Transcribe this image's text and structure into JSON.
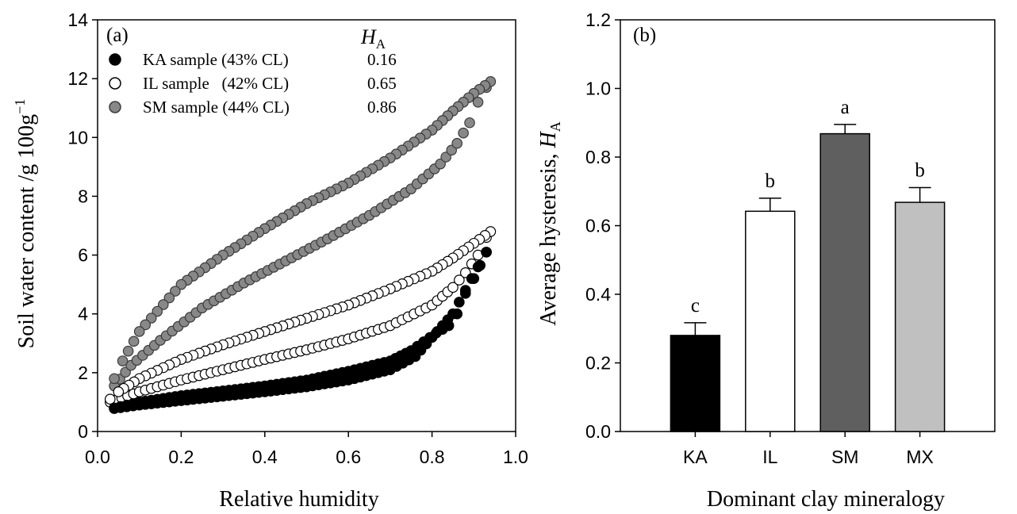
{
  "chart_data": [
    {
      "type": "scatter",
      "panel_label": "(a)",
      "xlabel": "Relative humidity",
      "ylabel": "Soil water content /g 100g",
      "ylabel_superscript": "−1",
      "xlim": [
        0.0,
        1.0
      ],
      "ylim": [
        0,
        14
      ],
      "xticks": [
        "0.0",
        "0.2",
        "0.4",
        "0.6",
        "0.8",
        "1.0"
      ],
      "yticks": [
        "0",
        "2",
        "4",
        "6",
        "8",
        "10",
        "12",
        "14"
      ],
      "grid": false,
      "legend_header": "H",
      "legend_header_subscript": "A",
      "legend_placement": "top-left",
      "series": [
        {
          "name": "KA sample (43% CL)",
          "ha": "0.16",
          "marker": "filled-black",
          "color": "#000000",
          "adsorption": [
            [
              0.04,
              0.78
            ],
            [
              0.1,
              0.9
            ],
            [
              0.2,
              1.05
            ],
            [
              0.3,
              1.2
            ],
            [
              0.4,
              1.35
            ],
            [
              0.5,
              1.52
            ],
            [
              0.6,
              1.75
            ],
            [
              0.7,
              2.1
            ],
            [
              0.76,
              2.55
            ],
            [
              0.8,
              3.2
            ],
            [
              0.85,
              4.0
            ],
            [
              0.88,
              4.8
            ],
            [
              0.91,
              5.6
            ],
            [
              0.93,
              6.1
            ]
          ],
          "desorption": [
            [
              0.93,
              6.1
            ],
            [
              0.9,
              5.2
            ],
            [
              0.88,
              4.7
            ],
            [
              0.86,
              4.0
            ],
            [
              0.84,
              3.6
            ],
            [
              0.81,
              3.35
            ],
            [
              0.78,
              3.05
            ],
            [
              0.75,
              2.75
            ],
            [
              0.7,
              2.4
            ],
            [
              0.6,
              2.05
            ],
            [
              0.5,
              1.75
            ],
            [
              0.4,
              1.55
            ],
            [
              0.3,
              1.38
            ],
            [
              0.2,
              1.22
            ],
            [
              0.1,
              1.0
            ],
            [
              0.04,
              0.8
            ]
          ]
        },
        {
          "name": "IL sample   (42% CL)",
          "ha": "0.65",
          "marker": "open-white",
          "color": "#ffffff",
          "adsorption": [
            [
              0.03,
              1.0
            ],
            [
              0.1,
              1.35
            ],
            [
              0.2,
              1.75
            ],
            [
              0.3,
              2.1
            ],
            [
              0.4,
              2.45
            ],
            [
              0.5,
              2.78
            ],
            [
              0.6,
              3.15
            ],
            [
              0.7,
              3.6
            ],
            [
              0.8,
              4.3
            ],
            [
              0.85,
              4.9
            ],
            [
              0.88,
              5.4
            ],
            [
              0.91,
              6.0
            ],
            [
              0.93,
              6.6
            ]
          ],
          "desorption": [
            [
              0.94,
              6.8
            ],
            [
              0.9,
              6.4
            ],
            [
              0.85,
              5.9
            ],
            [
              0.8,
              5.45
            ],
            [
              0.7,
              4.85
            ],
            [
              0.6,
              4.3
            ],
            [
              0.5,
              3.85
            ],
            [
              0.4,
              3.4
            ],
            [
              0.3,
              2.95
            ],
            [
              0.2,
              2.45
            ],
            [
              0.1,
              1.8
            ],
            [
              0.05,
              1.35
            ],
            [
              0.03,
              1.1
            ]
          ]
        },
        {
          "name": "SM sample (44% CL)",
          "ha": "0.86",
          "marker": "filled-gray",
          "color": "#888888",
          "adsorption": [
            [
              0.04,
              1.55
            ],
            [
              0.08,
              2.25
            ],
            [
              0.15,
              3.1
            ],
            [
              0.25,
              4.2
            ],
            [
              0.35,
              5.05
            ],
            [
              0.45,
              5.8
            ],
            [
              0.55,
              6.55
            ],
            [
              0.65,
              7.35
            ],
            [
              0.75,
              8.25
            ],
            [
              0.82,
              9.1
            ],
            [
              0.86,
              9.8
            ],
            [
              0.89,
              10.5
            ],
            [
              0.91,
              11.2
            ],
            [
              0.93,
              11.7
            ]
          ],
          "desorption": [
            [
              0.94,
              11.9
            ],
            [
              0.9,
              11.5
            ],
            [
              0.85,
              10.9
            ],
            [
              0.8,
              10.25
            ],
            [
              0.7,
              9.3
            ],
            [
              0.6,
              8.45
            ],
            [
              0.5,
              7.75
            ],
            [
              0.4,
              6.9
            ],
            [
              0.3,
              6.0
            ],
            [
              0.2,
              5.0
            ],
            [
              0.1,
              3.4
            ],
            [
              0.06,
              2.4
            ],
            [
              0.04,
              1.8
            ]
          ]
        }
      ]
    },
    {
      "type": "bar",
      "panel_label": "(b)",
      "xlabel": "Dominant clay mineralogy",
      "ylabel": "Average hysteresis, ",
      "ylabel_italic": "H",
      "ylabel_subscript": "A",
      "ylim": [
        0.0,
        1.2
      ],
      "yticks": [
        "0.0",
        "0.2",
        "0.4",
        "0.6",
        "0.8",
        "1.0",
        "1.2"
      ],
      "grid": false,
      "categories": [
        "KA",
        "IL",
        "SM",
        "MX"
      ],
      "values": [
        0.28,
        0.642,
        0.868,
        0.668
      ],
      "errors": [
        0.037,
        0.038,
        0.027,
        0.043
      ],
      "significance": [
        "c",
        "b",
        "a",
        "b"
      ],
      "bar_colors": [
        "#000000",
        "#ffffff",
        "#5f5f5f",
        "#c0c0c0"
      ]
    }
  ]
}
